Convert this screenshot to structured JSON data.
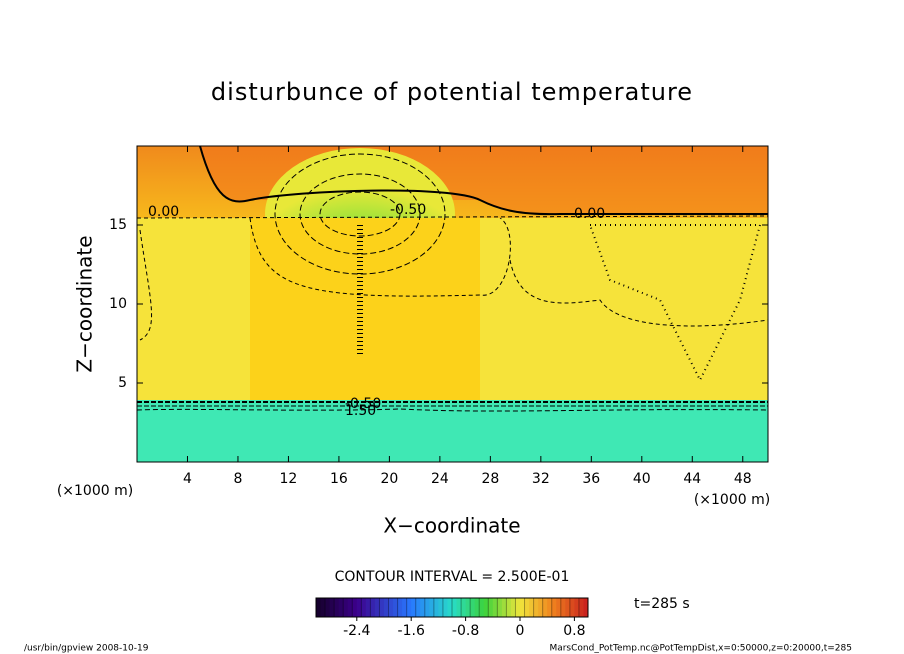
{
  "chart_data": {
    "type": "contour",
    "title": "disturbunce of potential temperature",
    "x_label": "X−coordinate",
    "y_label": "Z−coordinate",
    "x_unit": "(×1000 m)",
    "y_unit": "(×1000 m)",
    "xlim": [
      0,
      50
    ],
    "xticks": [
      4,
      8,
      12,
      16,
      20,
      24,
      28,
      32,
      36,
      40,
      44,
      48
    ],
    "ylim": [
      0,
      20
    ],
    "yticks": [
      5,
      10,
      15
    ],
    "contour_labels": [
      "0.00",
      "-0.50",
      "0.00",
      "-0.50",
      "1.50"
    ],
    "contour_interval": "CONTOUR INTERVAL = 2.500E-01",
    "time_label": "t=285 s",
    "colorbar": {
      "range": [
        -3,
        1
      ],
      "ticks": [
        -2.4,
        -1.6,
        -0.8,
        0,
        0.8
      ]
    },
    "footer_left": "/usr/bin/gpview   2008-10-19",
    "footer_right": "MarsCond_PotTemp.nc@PotTempDist,x=0:50000,z=0:20000,t=285"
  }
}
